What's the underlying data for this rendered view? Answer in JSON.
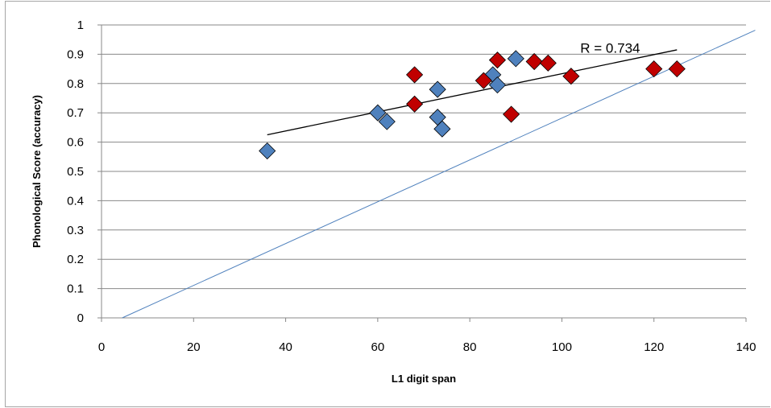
{
  "chart_data": {
    "type": "scatter",
    "title": "",
    "xlabel": "L1 digit span",
    "ylabel": "Phonological Score (accuracy)",
    "xlim": [
      0,
      140
    ],
    "ylim": [
      0,
      1
    ],
    "x_ticks": [
      "0",
      "20",
      "40",
      "60",
      "80",
      "100",
      "120",
      "140"
    ],
    "y_ticks": [
      "0",
      "0.1",
      "0.2",
      "0.3",
      "0.4",
      "0.5",
      "0.6",
      "0.7",
      "0.8",
      "0.9",
      "1"
    ],
    "grid": "horizontal",
    "legend": "none",
    "series": [
      {
        "color": "#4f81bd",
        "marker": "diamond",
        "points": [
          {
            "x": 36,
            "y": 0.57
          },
          {
            "x": 60,
            "y": 0.7
          },
          {
            "x": 62,
            "y": 0.67
          },
          {
            "x": 73,
            "y": 0.78
          },
          {
            "x": 73,
            "y": 0.685
          },
          {
            "x": 74,
            "y": 0.645
          },
          {
            "x": 85,
            "y": 0.83
          },
          {
            "x": 86,
            "y": 0.795
          },
          {
            "x": 90,
            "y": 0.885
          }
        ]
      },
      {
        "color": "#c00000",
        "marker": "diamond",
        "points": [
          {
            "x": 68,
            "y": 0.83
          },
          {
            "x": 68,
            "y": 0.73
          },
          {
            "x": 83,
            "y": 0.81
          },
          {
            "x": 86,
            "y": 0.88
          },
          {
            "x": 89,
            "y": 0.695
          },
          {
            "x": 94,
            "y": 0.875
          },
          {
            "x": 97,
            "y": 0.87
          },
          {
            "x": 102,
            "y": 0.825
          },
          {
            "x": 120,
            "y": 0.85
          },
          {
            "x": 125,
            "y": 0.85
          }
        ]
      }
    ],
    "trendline": {
      "color": "#000000",
      "from": {
        "x": 36,
        "y": 0.625
      },
      "to": {
        "x": 125,
        "y": 0.915
      }
    },
    "reference_line": {
      "color": "#4f81bd",
      "from": {
        "x": 4.5,
        "y": 0
      },
      "to": {
        "x": 142,
        "y": 0.982
      }
    },
    "annotation": {
      "text": "R = 0.734",
      "x": 104,
      "y": 0.905
    }
  }
}
